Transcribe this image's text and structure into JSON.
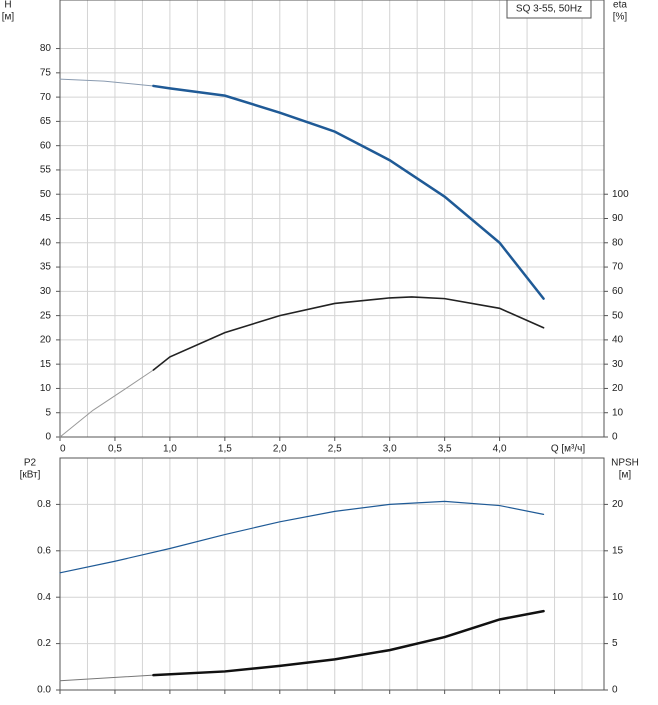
{
  "chart_data": [
    {
      "type": "line",
      "title": "SQ 3-55, 50Hz",
      "y_label": [
        "H",
        "[м]"
      ],
      "y2_label": [
        "eta",
        "[%]"
      ],
      "x_label": "Q [м³/ч]",
      "xlim": [
        0,
        4.95
      ],
      "xticks": [
        0,
        {
          "value": 0.5,
          "label": "0,5"
        },
        {
          "value": 1.0,
          "label": "1,0"
        },
        {
          "value": 1.5,
          "label": "1,5"
        },
        {
          "value": 2.0,
          "label": "2,0"
        },
        {
          "value": 2.5,
          "label": "2,5"
        },
        {
          "value": 3.0,
          "label": "3,0"
        },
        {
          "value": 3.5,
          "label": "3,5"
        },
        {
          "value": 4.0,
          "label": "4,0"
        }
      ],
      "x_minor_ticks": [
        0.25,
        0.75,
        1.25,
        1.75,
        2.25,
        2.75,
        3.25,
        3.75,
        4.25,
        4.75
      ],
      "ylim": [
        0,
        90
      ],
      "yticks": [
        0,
        5,
        10,
        15,
        20,
        25,
        30,
        35,
        40,
        45,
        50,
        55,
        60,
        65,
        70,
        75,
        80
      ],
      "y2lim": [
        0,
        180
      ],
      "y2ticks": [
        0,
        10,
        20,
        30,
        40,
        50,
        60,
        70,
        80,
        90,
        100
      ],
      "grid": true,
      "series": [
        {
          "axis": "y",
          "color": "#8a9bb0",
          "width": 1,
          "x": [
            0,
            0.4,
            0.85
          ],
          "values": [
            73.7,
            73.3,
            72.3
          ]
        },
        {
          "axis": "y",
          "color": "#1f5a96",
          "width": 2.5,
          "x": [
            0.85,
            1.0,
            1.5,
            2.0,
            2.5,
            3.0,
            3.5,
            4.0,
            4.4
          ],
          "values": [
            72.3,
            71.8,
            70.3,
            66.8,
            62.9,
            57,
            49.5,
            40,
            28.5
          ]
        },
        {
          "axis": "y2",
          "color": "#999999",
          "width": 1,
          "x": [
            0,
            0.3,
            0.6,
            0.85
          ],
          "values": [
            0,
            11,
            20,
            27.6
          ]
        },
        {
          "axis": "y2",
          "color": "#222222",
          "width": 1.6,
          "x": [
            0.85,
            1.0,
            1.5,
            2.0,
            2.5,
            3.0,
            3.2,
            3.5,
            4.0,
            4.4
          ],
          "values": [
            27.6,
            33,
            43,
            50,
            55,
            57.3,
            57.7,
            57,
            53,
            45
          ]
        }
      ]
    },
    {
      "type": "line",
      "y_label": [
        "P2",
        "[кВт]"
      ],
      "y2_label": [
        "NPSH",
        "[м]"
      ],
      "xlim": [
        0,
        4.95
      ],
      "x_major_ticks": [
        0,
        0.5,
        1.0,
        1.5,
        2.0,
        2.5,
        3.0,
        3.5,
        4.0,
        4.5
      ],
      "x_minor_ticks": [
        0.25,
        0.75,
        1.25,
        1.75,
        2.25,
        2.75,
        3.25,
        3.75,
        4.25,
        4.75
      ],
      "ylim": [
        0,
        1.0
      ],
      "yticks": [
        {
          "value": 0,
          "label": "0.0"
        },
        0.2,
        0.4,
        0.6,
        0.8
      ],
      "y2lim": [
        0,
        25
      ],
      "y2ticks": [
        0,
        5,
        10,
        15,
        20
      ],
      "grid": true,
      "series": [
        {
          "axis": "y",
          "color": "#1f5a96",
          "width": 1.2,
          "x": [
            0,
            0.5,
            1.0,
            1.5,
            2.0,
            2.5,
            3.0,
            3.5,
            4.0,
            4.4
          ],
          "values": [
            0.505,
            0.555,
            0.61,
            0.67,
            0.725,
            0.77,
            0.8,
            0.813,
            0.795,
            0.757
          ]
        },
        {
          "axis": "y2",
          "color": "#777777",
          "width": 1,
          "x": [
            0,
            0.85
          ],
          "values": [
            1.0,
            1.6
          ]
        },
        {
          "axis": "y2",
          "color": "#111111",
          "width": 2.5,
          "x": [
            0.85,
            1.5,
            2.0,
            2.5,
            3.0,
            3.5,
            4.0,
            4.4
          ],
          "values": [
            1.6,
            2.0,
            2.6,
            3.3,
            4.3,
            5.7,
            7.6,
            8.5
          ]
        }
      ]
    }
  ]
}
